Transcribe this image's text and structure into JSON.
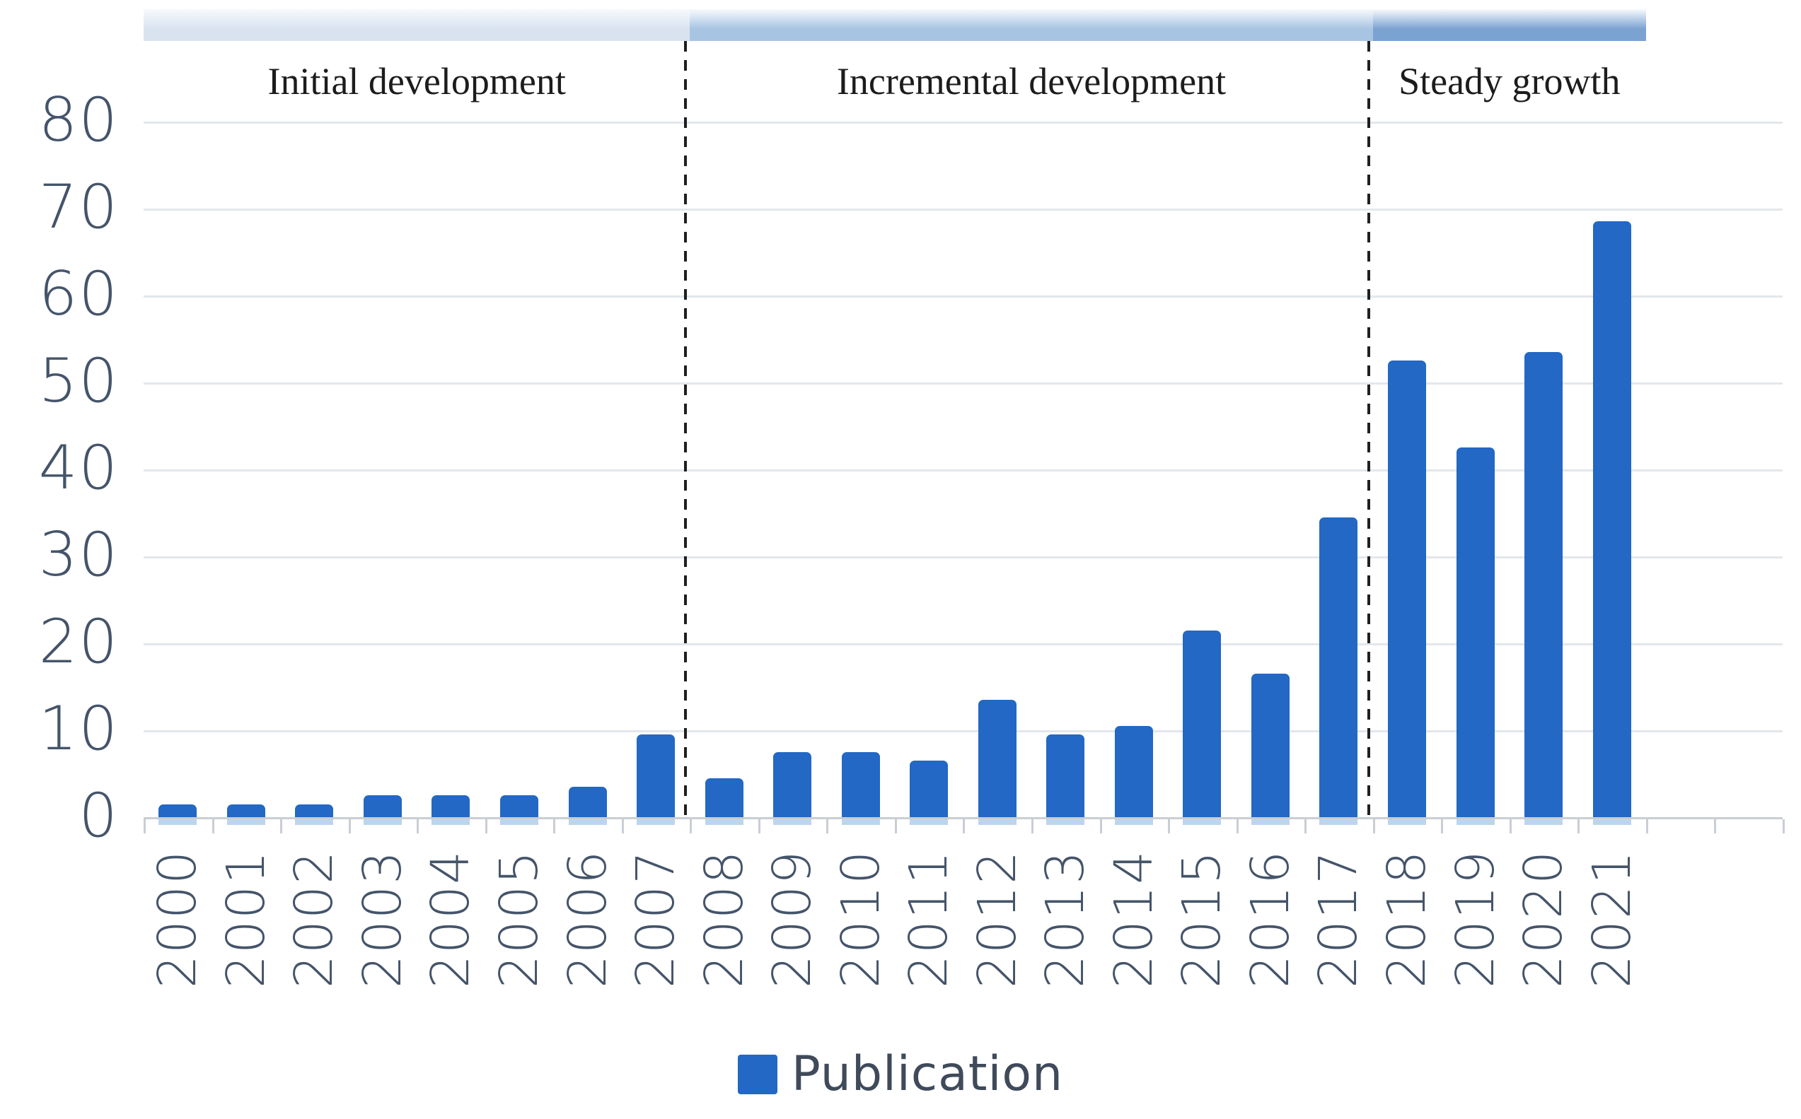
{
  "chart_data": {
    "type": "bar",
    "title": "",
    "xlabel": "",
    "ylabel": "",
    "series_name": "Publication",
    "categories": [
      "2000",
      "2001",
      "2002",
      "2003",
      "2004",
      "2005",
      "2006",
      "2007",
      "2008",
      "2009",
      "2010",
      "2011",
      "2012",
      "2013",
      "2014",
      "2015",
      "2016",
      "2017",
      "2018",
      "2019",
      "2020",
      "2021"
    ],
    "values": [
      1.5,
      1.5,
      1.5,
      2.5,
      2.5,
      2.5,
      3.5,
      9.5,
      4.5,
      7.5,
      7.5,
      6.5,
      13.5,
      9.5,
      10.5,
      21.5,
      16.5,
      34.5,
      52.5,
      42.5,
      53.5,
      68.5
    ],
    "ylim": [
      0,
      80
    ],
    "yticks": [
      0,
      10,
      20,
      30,
      40,
      50,
      60,
      70,
      80
    ],
    "grid": true,
    "legend": {
      "position": "bottom",
      "label": "Publication"
    },
    "phases": [
      {
        "label": "Initial development",
        "from": "2000",
        "to": "2007",
        "band_color": "#d9e3f0"
      },
      {
        "label": "Incremental development",
        "from": "2008",
        "to": "2017",
        "band_color": "#a8c4e3"
      },
      {
        "label": "Steady growth",
        "from": "2018",
        "to": "2021",
        "band_color": "#7ba3d2"
      }
    ],
    "colors": {
      "bar": "#2268c4",
      "bar_reflection": "#bcd5ef",
      "grid": "#e3e7eb",
      "axis_line": "#c9ced4",
      "axis_text": "#44546a",
      "phase_text": "#1c1c1c",
      "separator": "#1f1f1f",
      "legend_text": "#3f4a5a",
      "band_gradient_top": "#f7fafd"
    }
  }
}
